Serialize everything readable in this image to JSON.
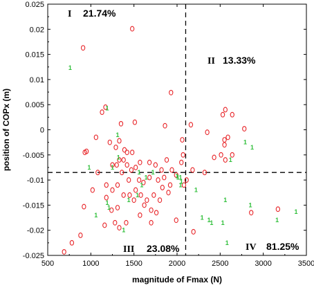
{
  "chart_data": {
    "type": "scatter",
    "xlabel": "magnitude of Fmax (N)",
    "ylabel": "position of COPx (m)",
    "xlim": [
      500,
      3500
    ],
    "ylim": [
      -0.025,
      0.025
    ],
    "x_ticks": [
      "500",
      "1000",
      "1500",
      "2000",
      "2500",
      "3000",
      "3500"
    ],
    "y_ticks": [
      "-0.025",
      "-0.02",
      "-0.015",
      "-0.01",
      "-0.005",
      "0",
      "0.005",
      "0.01",
      "0.015",
      "0.02",
      "0.025"
    ],
    "threshold_x": 2100,
    "threshold_y": -0.0085,
    "colors": {
      "red": "#e8262a",
      "green": "#2fbf3a",
      "dashed": "#000000"
    },
    "quadrants": [
      {
        "numeral": "I",
        "percent": "21.74%"
      },
      {
        "numeral": "II",
        "percent": "13.33%"
      },
      {
        "numeral": "III",
        "percent": "23.08%"
      },
      {
        "numeral": "IV",
        "percent": "81.25%"
      }
    ],
    "green_marker_text": "1",
    "series": [
      {
        "marker": "ellipse",
        "color": "red",
        "points": [
          [
            910,
            0.0163
          ],
          [
            1480,
            0.0201
          ],
          [
            1130,
            0.0035
          ],
          [
            1170,
            0.0045
          ],
          [
            1350,
            0.0012
          ],
          [
            1510,
            0.0015
          ],
          [
            1930,
            0.0074
          ],
          [
            1860,
            0.0008
          ],
          [
            950,
            -0.0043
          ],
          [
            930,
            -0.0045
          ],
          [
            1060,
            -0.0015
          ],
          [
            1220,
            -0.0025
          ],
          [
            1290,
            -0.0035
          ],
          [
            1330,
            -0.0022
          ],
          [
            1390,
            -0.004
          ],
          [
            1420,
            -0.0045
          ],
          [
            1480,
            -0.0045
          ],
          [
            1330,
            -0.006
          ],
          [
            1380,
            -0.006
          ],
          [
            1250,
            -0.007
          ],
          [
            1300,
            -0.007
          ],
          [
            1420,
            -0.007
          ],
          [
            1470,
            -0.008
          ],
          [
            1520,
            -0.0075
          ],
          [
            1570,
            -0.0065
          ],
          [
            1680,
            -0.0065
          ],
          [
            1750,
            -0.007
          ],
          [
            1820,
            -0.008
          ],
          [
            1880,
            -0.006
          ],
          [
            1940,
            -0.008
          ],
          [
            1990,
            -0.009
          ],
          [
            2050,
            -0.0065
          ],
          [
            1360,
            -0.0085
          ],
          [
            1440,
            -0.01
          ],
          [
            1560,
            -0.01
          ],
          [
            1610,
            -0.0105
          ],
          [
            1680,
            -0.0095
          ],
          [
            1780,
            -0.01
          ],
          [
            1850,
            -0.0095
          ],
          [
            1920,
            -0.011
          ],
          [
            1080,
            -0.0085
          ],
          [
            1020,
            -0.012
          ],
          [
            1180,
            -0.011
          ],
          [
            1250,
            -0.012
          ],
          [
            1310,
            -0.011
          ],
          [
            1380,
            -0.013
          ],
          [
            1450,
            -0.013
          ],
          [
            1520,
            -0.012
          ],
          [
            1580,
            -0.013
          ],
          [
            1650,
            -0.014
          ],
          [
            1730,
            -0.013
          ],
          [
            1620,
            -0.015
          ],
          [
            1700,
            -0.016
          ],
          [
            920,
            -0.0153
          ],
          [
            1160,
            -0.019
          ],
          [
            1280,
            -0.0185
          ],
          [
            1330,
            -0.0195
          ],
          [
            1410,
            -0.0185
          ],
          [
            1570,
            -0.017
          ],
          [
            1700,
            -0.0185
          ],
          [
            1760,
            -0.0165
          ],
          [
            1990,
            -0.018
          ],
          [
            1180,
            -0.0135
          ],
          [
            1240,
            -0.016
          ],
          [
            1310,
            -0.0155
          ],
          [
            1500,
            -0.014
          ],
          [
            1800,
            -0.014
          ],
          [
            1830,
            -0.0115
          ],
          [
            1900,
            -0.0125
          ],
          [
            2080,
            -0.011
          ],
          [
            2110,
            -0.01
          ],
          [
            2180,
            -0.008
          ],
          [
            2320,
            -0.0085
          ],
          [
            2430,
            -0.0055
          ],
          [
            2510,
            -0.005
          ],
          [
            2560,
            -0.006
          ],
          [
            2640,
            -0.005
          ],
          [
            2550,
            -0.003
          ],
          [
            2550,
            -0.002
          ],
          [
            2590,
            -0.0015
          ],
          [
            2780,
            0.0002
          ],
          [
            2530,
            0.003
          ],
          [
            2640,
            0.003
          ],
          [
            2560,
            0.004
          ],
          [
            2160,
            0.001
          ],
          [
            2350,
            -0.0005
          ],
          [
            2060,
            -0.002
          ],
          [
            2070,
            -0.005
          ],
          [
            880,
            -0.021
          ],
          [
            780,
            -0.0225
          ],
          [
            690,
            -0.0243
          ],
          [
            2190,
            -0.0203
          ],
          [
            2860,
            -0.0165
          ],
          [
            3170,
            -0.0158
          ]
        ]
      },
      {
        "marker": "digit",
        "color": "green",
        "points": [
          [
            760,
            0.0123
          ],
          [
            1190,
            0.0043
          ],
          [
            1310,
            -0.001
          ],
          [
            1320,
            -0.0055
          ],
          [
            1250,
            -0.0075
          ],
          [
            1560,
            -0.0085
          ],
          [
            2790,
            -0.0025
          ],
          [
            2870,
            -0.0035
          ],
          [
            2620,
            -0.006
          ],
          [
            1640,
            -0.0095
          ],
          [
            1720,
            -0.0085
          ],
          [
            2000,
            -0.0092
          ],
          [
            2010,
            -0.0095
          ],
          [
            1540,
            -0.013
          ],
          [
            1210,
            -0.0155
          ],
          [
            1440,
            -0.014
          ],
          [
            2040,
            -0.011
          ],
          [
            2040,
            -0.0095
          ],
          [
            1380,
            -0.02
          ],
          [
            1060,
            -0.017
          ],
          [
            1190,
            -0.0145
          ],
          [
            2220,
            -0.012
          ],
          [
            2560,
            -0.014
          ],
          [
            2290,
            -0.0175
          ],
          [
            2370,
            -0.018
          ],
          [
            2400,
            -0.0185
          ],
          [
            2530,
            -0.0185
          ],
          [
            2580,
            -0.0225
          ],
          [
            2850,
            -0.015
          ],
          [
            3160,
            -0.018
          ],
          [
            3380,
            -0.0163
          ],
          [
            1590,
            -0.011
          ],
          [
            2050,
            -0.0103
          ],
          [
            980,
            -0.0075
          ]
        ]
      }
    ]
  }
}
